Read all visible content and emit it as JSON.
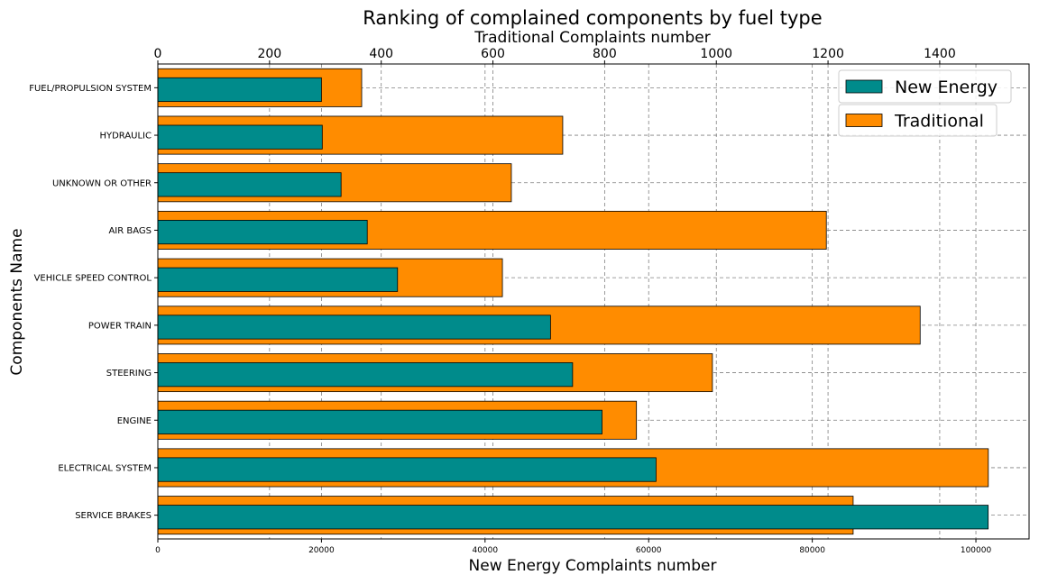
{
  "chart_data": {
    "type": "bar",
    "orientation": "horizontal",
    "title": "Ranking of complained components by fuel type",
    "ylabel": "Components Name",
    "xlabel_bottom": "New Energy Complaints number",
    "xlabel_top": "Traditional Complaints number",
    "categories": [
      "FUEL/PROPULSION SYSTEM",
      "HYDRAULIC",
      "UNKNOWN OR OTHER",
      "AIR BAGS",
      "VEHICLE SPEED CONTROL",
      "POWER TRAIN",
      "STEERING",
      "ENGINE",
      "ELECTRICAL SYSTEM",
      "SERVICE BRAKES"
    ],
    "series": [
      {
        "name": "New Energy",
        "axis": "bottom",
        "color": "#008b8b",
        "values": [
          20000,
          20100,
          22400,
          25600,
          29300,
          48000,
          50700,
          54300,
          60900,
          101500
        ]
      },
      {
        "name": "Traditional",
        "axis": "top",
        "color": "#ff8c00",
        "values": [
          365,
          725,
          633,
          1197,
          617,
          1365,
          993,
          857,
          1487,
          1245
        ]
      }
    ],
    "xlim_bottom": [
      0,
      106500
    ],
    "xlim_top": [
      0,
      1560
    ],
    "xticks_bottom": [
      "0",
      "20000",
      "40000",
      "60000",
      "80000",
      "100000"
    ],
    "xticks_bottom_values": [
      0,
      20000,
      40000,
      60000,
      80000,
      100000
    ],
    "xticks_top": [
      "0",
      "200",
      "400",
      "600",
      "800",
      "1000",
      "1200",
      "1400"
    ],
    "xticks_top_values": [
      0,
      200,
      400,
      600,
      800,
      1000,
      1200,
      1400
    ],
    "grid": true,
    "legend_position": "top-right"
  }
}
